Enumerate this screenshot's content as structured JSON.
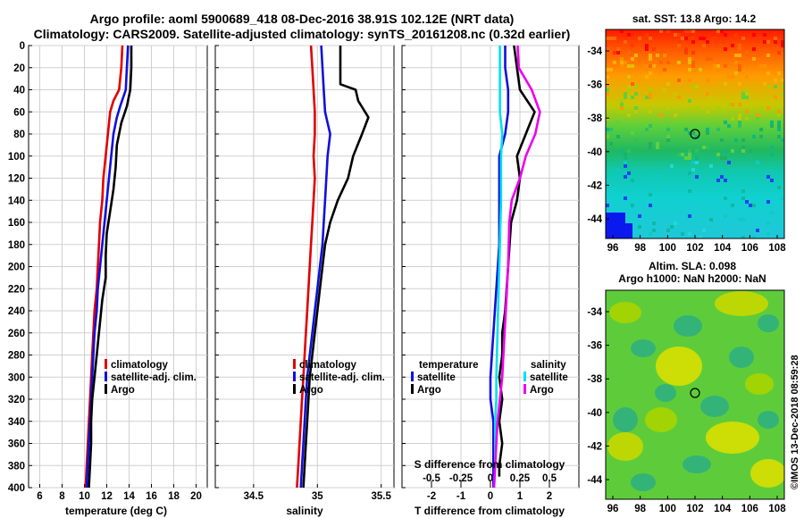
{
  "header": {
    "line1": "Argo profile: aoml 5900689_418 08-Dec-2016 38.91S 102.12E (NRT data)",
    "line2": "Climatology: CARS2009. Satellite-adjusted climatology: synTS_20161208.nc (0.32d earlier)"
  },
  "colors": {
    "climatology": "#e00000",
    "satellite": "#1010dd",
    "argo": "#000000",
    "sat_salinity": "#00e0ee",
    "argo_salinity": "#ee00ee"
  },
  "chart_data": [
    {
      "id": "temperature",
      "type": "line",
      "xlabel": "temperature (deg C)",
      "xlim": [
        5,
        21
      ],
      "xticks": [
        6,
        8,
        10,
        12,
        14,
        16,
        18,
        20
      ],
      "ylim": [
        0,
        400
      ],
      "yticks": [
        0,
        20,
        40,
        60,
        80,
        100,
        120,
        140,
        160,
        180,
        200,
        220,
        240,
        260,
        280,
        300,
        320,
        340,
        360,
        380,
        400
      ],
      "legend": [
        "climatology",
        "satellite-adj. clim.",
        "Argo"
      ],
      "series": [
        {
          "name": "climatology",
          "color": "#e00000",
          "points": [
            [
              13.4,
              0
            ],
            [
              13.3,
              20
            ],
            [
              13.1,
              40
            ],
            [
              12.6,
              50
            ],
            [
              12.3,
              60
            ],
            [
              12.1,
              80
            ],
            [
              11.9,
              100
            ],
            [
              11.7,
              120
            ],
            [
              11.6,
              140
            ],
            [
              11.4,
              160
            ],
            [
              11.3,
              180
            ],
            [
              11.2,
              200
            ],
            [
              11.1,
              220
            ],
            [
              10.9,
              240
            ],
            [
              10.8,
              260
            ],
            [
              10.7,
              280
            ],
            [
              10.6,
              300
            ],
            [
              10.5,
              320
            ],
            [
              10.4,
              340
            ],
            [
              10.3,
              360
            ],
            [
              10.2,
              380
            ],
            [
              10.1,
              400
            ]
          ]
        },
        {
          "name": "satellite-adj. clim.",
          "color": "#1010dd",
          "points": [
            [
              13.9,
              0
            ],
            [
              13.8,
              20
            ],
            [
              13.7,
              40
            ],
            [
              13.2,
              55
            ],
            [
              12.9,
              65
            ],
            [
              12.6,
              80
            ],
            [
              12.4,
              100
            ],
            [
              12.2,
              120
            ],
            [
              12.0,
              140
            ],
            [
              11.8,
              160
            ],
            [
              11.6,
              180
            ],
            [
              11.4,
              200
            ],
            [
              11.2,
              220
            ],
            [
              11.1,
              240
            ],
            [
              10.9,
              260
            ],
            [
              10.8,
              280
            ],
            [
              10.7,
              300
            ],
            [
              10.6,
              320
            ],
            [
              10.5,
              340
            ],
            [
              10.4,
              360
            ],
            [
              10.3,
              380
            ],
            [
              10.2,
              400
            ]
          ]
        },
        {
          "name": "Argo",
          "color": "#000000",
          "points": [
            [
              14.2,
              0
            ],
            [
              14.2,
              20
            ],
            [
              14.1,
              40
            ],
            [
              13.8,
              55
            ],
            [
              13.3,
              70
            ],
            [
              12.9,
              90
            ],
            [
              12.8,
              110
            ],
            [
              12.6,
              130
            ],
            [
              12.3,
              150
            ],
            [
              12.0,
              170
            ],
            [
              11.9,
              190
            ],
            [
              11.9,
              210
            ],
            [
              11.6,
              230
            ],
            [
              11.4,
              250
            ],
            [
              11.1,
              280
            ],
            [
              10.9,
              300
            ],
            [
              10.7,
              320
            ],
            [
              10.6,
              340
            ],
            [
              10.6,
              360
            ],
            [
              10.5,
              380
            ],
            [
              10.4,
              400
            ]
          ]
        }
      ]
    },
    {
      "id": "salinity",
      "type": "line",
      "xlabel": "salinity",
      "xlim": [
        34.2,
        35.6
      ],
      "xticks": [
        34.5,
        35,
        35.5
      ],
      "xticklabels": [
        "34.5",
        "35",
        "35.5"
      ],
      "ylim": [
        0,
        400
      ],
      "legend": [
        "climatology",
        "satellite-adj. clim.",
        "Argo"
      ],
      "series": [
        {
          "name": "climatology",
          "color": "#e00000",
          "points": [
            [
              34.95,
              0
            ],
            [
              34.96,
              20
            ],
            [
              34.97,
              40
            ],
            [
              34.98,
              60
            ],
            [
              34.98,
              80
            ],
            [
              34.97,
              100
            ],
            [
              34.98,
              120
            ],
            [
              34.97,
              140
            ],
            [
              34.96,
              160
            ],
            [
              34.95,
              180
            ],
            [
              34.94,
              200
            ],
            [
              34.93,
              220
            ],
            [
              34.92,
              240
            ],
            [
              34.91,
              260
            ],
            [
              34.9,
              280
            ],
            [
              34.89,
              300
            ],
            [
              34.88,
              320
            ],
            [
              34.87,
              340
            ],
            [
              34.86,
              360
            ],
            [
              34.85,
              380
            ],
            [
              34.84,
              400
            ]
          ]
        },
        {
          "name": "satellite-adj. clim.",
          "color": "#1010dd",
          "points": [
            [
              35.03,
              0
            ],
            [
              35.04,
              20
            ],
            [
              35.05,
              40
            ],
            [
              35.06,
              60
            ],
            [
              35.08,
              70
            ],
            [
              35.1,
              80
            ],
            [
              35.08,
              100
            ],
            [
              35.07,
              120
            ],
            [
              35.06,
              140
            ],
            [
              35.05,
              160
            ],
            [
              35.04,
              180
            ],
            [
              35.02,
              200
            ],
            [
              35.0,
              220
            ],
            [
              34.98,
              240
            ],
            [
              34.96,
              260
            ],
            [
              34.94,
              280
            ],
            [
              34.92,
              300
            ],
            [
              34.91,
              320
            ],
            [
              34.9,
              340
            ],
            [
              34.89,
              360
            ],
            [
              34.88,
              380
            ],
            [
              34.87,
              400
            ]
          ]
        },
        {
          "name": "Argo",
          "color": "#000000",
          "points": [
            [
              35.18,
              0
            ],
            [
              35.18,
              20
            ],
            [
              35.18,
              35
            ],
            [
              35.3,
              40
            ],
            [
              35.32,
              50
            ],
            [
              35.4,
              65
            ],
            [
              35.35,
              80
            ],
            [
              35.28,
              100
            ],
            [
              35.24,
              120
            ],
            [
              35.16,
              140
            ],
            [
              35.1,
              160
            ],
            [
              35.06,
              180
            ],
            [
              35.04,
              200
            ],
            [
              35.02,
              220
            ],
            [
              35.0,
              240
            ],
            [
              34.98,
              260
            ],
            [
              34.96,
              280
            ],
            [
              34.94,
              300
            ],
            [
              34.93,
              320
            ],
            [
              34.92,
              340
            ],
            [
              34.91,
              360
            ],
            [
              34.9,
              380
            ],
            [
              34.89,
              400
            ]
          ]
        }
      ]
    },
    {
      "id": "differences",
      "type": "line",
      "xlabel": "T difference from climatology",
      "xlabel_top": "S difference from climatology",
      "xlim": [
        -3,
        3
      ],
      "xticks": [
        -2,
        -1,
        0,
        1,
        2
      ],
      "xticklabels": [
        "-2",
        "-1",
        "0",
        "1",
        "2"
      ],
      "xlim_top": [
        -0.75,
        0.75
      ],
      "xticks_top": [
        -0.5,
        -0.25,
        0,
        0.25,
        0.5
      ],
      "xticklabels_top": [
        "-0.5",
        "-0.25",
        "0",
        "0.25",
        "0.5"
      ],
      "ylim": [
        0,
        400
      ],
      "legend_temperature_title": "temperature",
      "legend_temperature": [
        "satellite",
        "Argo"
      ],
      "legend_salinity_title": "salinity",
      "legend_salinity": [
        "satellite",
        "Argo"
      ],
      "series": [
        {
          "name": "T satellite",
          "axis": "bottom",
          "color": "#1010dd",
          "points": [
            [
              0.5,
              0
            ],
            [
              0.5,
              20
            ],
            [
              0.6,
              40
            ],
            [
              0.6,
              60
            ],
            [
              0.5,
              80
            ],
            [
              0.3,
              100
            ],
            [
              0.3,
              140
            ],
            [
              0.3,
              180
            ],
            [
              0.2,
              220
            ],
            [
              0.1,
              260
            ],
            [
              0.0,
              300
            ],
            [
              0.0,
              320
            ],
            [
              0.1,
              340
            ],
            [
              0.1,
              360
            ],
            [
              0.1,
              380
            ],
            [
              0.1,
              400
            ]
          ]
        },
        {
          "name": "T Argo",
          "axis": "bottom",
          "color": "#000000",
          "points": [
            [
              0.8,
              0
            ],
            [
              0.9,
              20
            ],
            [
              1.0,
              40
            ],
            [
              1.5,
              60
            ],
            [
              1.2,
              80
            ],
            [
              0.9,
              100
            ],
            [
              1.0,
              120
            ],
            [
              0.9,
              140
            ],
            [
              0.7,
              160
            ],
            [
              0.6,
              200
            ],
            [
              0.5,
              240
            ],
            [
              0.4,
              260
            ],
            [
              0.4,
              280
            ],
            [
              0.3,
              300
            ],
            [
              0.4,
              320
            ],
            [
              0.3,
              340
            ],
            [
              0.4,
              360
            ],
            [
              0.3,
              380
            ],
            [
              0.3,
              390
            ]
          ]
        },
        {
          "name": "S satellite",
          "axis": "top",
          "color": "#00e0ee",
          "points": [
            [
              0.08,
              0
            ],
            [
              0.08,
              20
            ],
            [
              0.08,
              40
            ],
            [
              0.08,
              60
            ],
            [
              0.1,
              80
            ],
            [
              0.09,
              100
            ],
            [
              0.09,
              140
            ],
            [
              0.08,
              180
            ],
            [
              0.07,
              220
            ],
            [
              0.06,
              260
            ],
            [
              0.05,
              300
            ],
            [
              0.05,
              320
            ],
            [
              0.04,
              340
            ],
            [
              0.04,
              360
            ],
            [
              0.04,
              380
            ],
            [
              0.03,
              400
            ]
          ]
        },
        {
          "name": "S Argo",
          "axis": "top",
          "color": "#ee00ee",
          "points": [
            [
              0.23,
              0
            ],
            [
              0.24,
              20
            ],
            [
              0.35,
              40
            ],
            [
              0.42,
              60
            ],
            [
              0.38,
              80
            ],
            [
              0.3,
              100
            ],
            [
              0.25,
              120
            ],
            [
              0.18,
              140
            ],
            [
              0.16,
              160
            ],
            [
              0.15,
              200
            ],
            [
              0.13,
              240
            ],
            [
              0.12,
              260
            ],
            [
              0.11,
              280
            ],
            [
              0.1,
              300
            ],
            [
              0.08,
              320
            ],
            [
              0.06,
              340
            ],
            [
              0.05,
              360
            ],
            [
              0.04,
              380
            ],
            [
              0.03,
              400
            ]
          ]
        }
      ]
    }
  ],
  "sst_map": {
    "title": "sat. SST: 13.8 Argo: 14.2",
    "xticks": [
      "96",
      "98",
      "100",
      "102",
      "104",
      "106",
      "108"
    ],
    "yticks": [
      "-34",
      "-36",
      "-38",
      "-40",
      "-42",
      "-44"
    ],
    "marker": "Argo float position"
  },
  "sla_map": {
    "title1": "Altim. SLA: 0.098",
    "title2": "Argo h1000: NaN h2000: NaN",
    "xticks": [
      "96",
      "98",
      "100",
      "102",
      "104",
      "106",
      "108"
    ],
    "yticks": [
      "-34",
      "-36",
      "-38",
      "-40",
      "-42",
      "-44"
    ],
    "marker": "Argo float position"
  },
  "watermark": "©IMOS 13-Dec-2018 08:59:28"
}
